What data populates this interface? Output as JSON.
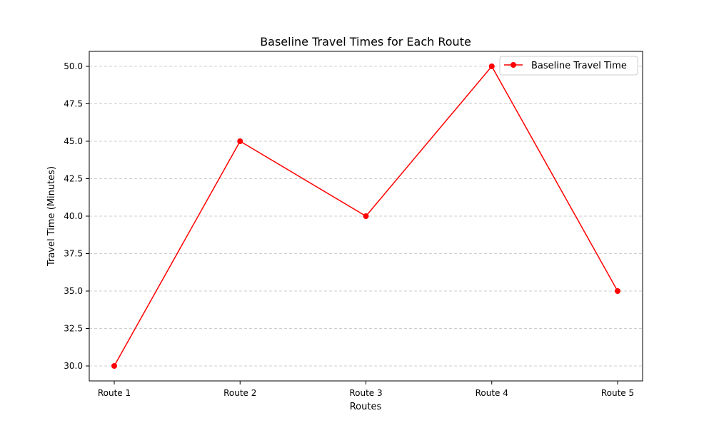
{
  "chart_data": {
    "type": "line",
    "title": "Baseline Travel Times for Each Route",
    "xlabel": "Routes",
    "ylabel": "Travel Time (Minutes)",
    "categories": [
      "Route 1",
      "Route 2",
      "Route 3",
      "Route 4",
      "Route 5"
    ],
    "series": [
      {
        "name": "Baseline Travel Time",
        "values": [
          30,
          45,
          40,
          50,
          35
        ],
        "color": "#ff0000",
        "marker": "circle"
      }
    ],
    "ylim": [
      29,
      51
    ],
    "yticks": [
      30.0,
      32.5,
      35.0,
      37.5,
      40.0,
      42.5,
      45.0,
      47.5,
      50.0
    ],
    "ytick_labels": [
      "30.0",
      "32.5",
      "35.0",
      "37.5",
      "40.0",
      "42.5",
      "45.0",
      "47.5",
      "50.0"
    ],
    "grid": {
      "y": true,
      "x": false,
      "style": "dashed",
      "color": "#c0c0c0"
    },
    "legend": {
      "position": "top-right"
    }
  }
}
